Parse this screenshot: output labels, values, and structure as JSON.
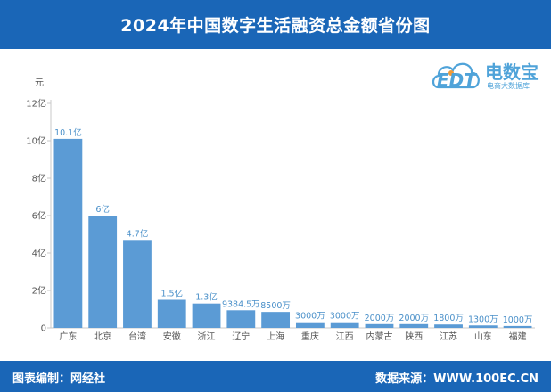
{
  "header": {
    "title": "2024年中国数字生活融资总金额省份图"
  },
  "footer": {
    "left_text": "图表编制：网经社",
    "right_text": "数据来源：WWW.100EC.CN"
  },
  "logo": {
    "name": "电数宝",
    "sub": "电商大数据库",
    "mark_text": "EDT",
    "mark_icon": "cloud-logo-icon"
  },
  "colors": {
    "header_bg": "#1a66b7",
    "bar": "#5b9bd5",
    "data_label": "#4a90c9",
    "axis_text": "#555555"
  },
  "chart_data": {
    "type": "bar",
    "title": "2024年中国数字生活融资总金额省份图",
    "unit_label": "元",
    "categories": [
      "广东",
      "北京",
      "台湾",
      "安徽",
      "浙江",
      "辽宁",
      "上海",
      "重庆",
      "江西",
      "内蒙古",
      "陕西",
      "江苏",
      "山东",
      "福建"
    ],
    "values": [
      10.1,
      6,
      4.7,
      1.5,
      1.3,
      0.93845,
      0.85,
      0.3,
      0.3,
      0.2,
      0.2,
      0.18,
      0.13,
      0.1
    ],
    "value_labels": [
      "10.1亿",
      "6亿",
      "4.7亿",
      "1.5亿",
      "1.3亿",
      "9384.5万",
      "8500万",
      "3000万",
      "3000万",
      "2000万",
      "2000万",
      "1800万",
      "1300万",
      "1000万"
    ],
    "y_unit": "亿",
    "ylim": [
      0,
      12
    ],
    "yticks": [
      0,
      2,
      4,
      6,
      8,
      10,
      12
    ],
    "ytick_labels": [
      "0",
      "2亿",
      "4亿",
      "6亿",
      "8亿",
      "10亿",
      "12亿"
    ],
    "grid": false,
    "legend": "none"
  }
}
